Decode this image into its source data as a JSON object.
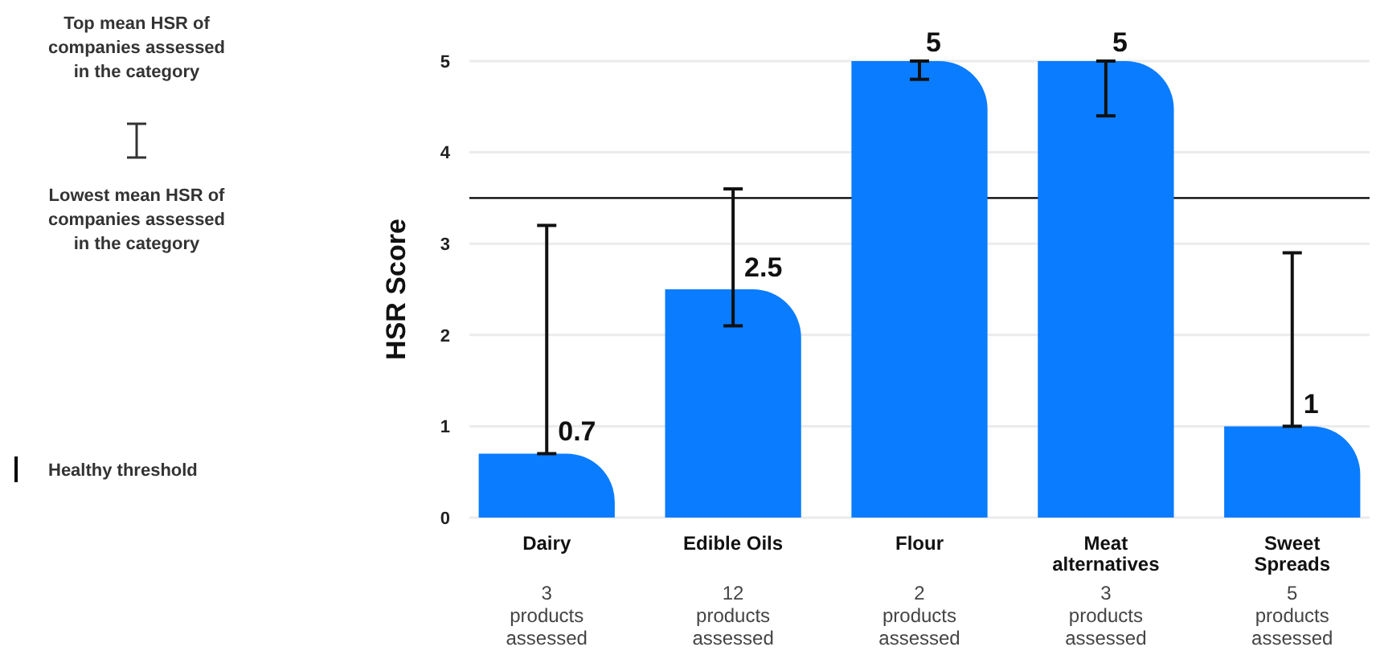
{
  "chart_data": {
    "type": "bar",
    "ylabel": "HSR Score",
    "categories": [
      "Dairy",
      "Edible Oils",
      "Flour",
      "Meat alternatives",
      "Sweet Spreads"
    ],
    "values": [
      0.7,
      2.5,
      5,
      5,
      1
    ],
    "errors": [
      [
        0.7,
        3.2
      ],
      [
        2.1,
        3.6
      ],
      [
        4.8,
        5
      ],
      [
        4.4,
        5
      ],
      [
        1,
        2.9
      ]
    ],
    "color": "#0a7cff",
    "data_labels": true,
    "ylim": [
      0,
      5
    ],
    "yticks": [
      0,
      1,
      2,
      3,
      4,
      5
    ],
    "grid": "y",
    "ref_lines": [
      {
        "axis": "y",
        "value": 3.5,
        "label": "Healthy threshold",
        "color": "#000000"
      }
    ],
    "annotations": [
      "Top mean HSR of companies assessed in the category",
      "Lowest mean HSR of companies assessed in the category",
      "3 products assessed",
      "12 products assessed",
      "2 products assessed",
      "3 products assessed",
      "5 products assessed"
    ]
  }
}
